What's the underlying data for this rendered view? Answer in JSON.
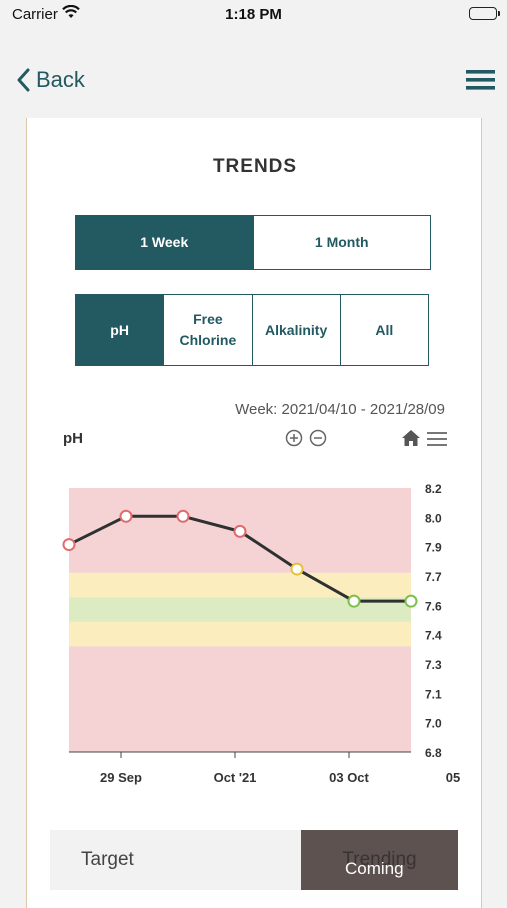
{
  "status_bar": {
    "carrier": "Carrier",
    "time": "1:18 PM"
  },
  "nav": {
    "back_label": "Back"
  },
  "page": {
    "title": "TRENDS"
  },
  "range_tabs": [
    {
      "label": "1 Week",
      "active": true
    },
    {
      "label": "1 Month",
      "active": false
    }
  ],
  "param_tabs": [
    {
      "label": "pH",
      "active": true
    },
    {
      "label": "Free Chlorine",
      "active": false
    },
    {
      "label": "Alkalinity",
      "active": false
    },
    {
      "label": "All",
      "active": false
    }
  ],
  "chart_header": {
    "week_range": "Week: 2021/04/10 - 2021/28/09",
    "title": "pH"
  },
  "chart_data": {
    "type": "line",
    "title": "pH",
    "y_ticks": [
      "8.2",
      "8.0",
      "7.9",
      "7.7",
      "7.6",
      "7.4",
      "7.3",
      "7.1",
      "7.0",
      "6.8"
    ],
    "x_ticks": [
      "29 Sep",
      "Oct '21",
      "03 Oct",
      "05"
    ],
    "points": [
      {
        "y": 7.9,
        "status": "red"
      },
      {
        "y": 8.05,
        "status": "red"
      },
      {
        "y": 8.05,
        "status": "red"
      },
      {
        "y": 7.97,
        "status": "red"
      },
      {
        "y": 7.77,
        "status": "yellow"
      },
      {
        "y": 7.6,
        "status": "green"
      },
      {
        "y": 7.6,
        "status": "green"
      }
    ],
    "bands": [
      {
        "from": 7.75,
        "to": 8.2,
        "color": "#f5d2d4"
      },
      {
        "from": 7.62,
        "to": 7.75,
        "color": "#fbedbe"
      },
      {
        "from": 7.49,
        "to": 7.62,
        "color": "#dcebc2"
      },
      {
        "from": 7.36,
        "to": 7.49,
        "color": "#fbedbe"
      },
      {
        "from": 6.8,
        "to": 7.36,
        "color": "#f5d2d4"
      }
    ],
    "status_colors": {
      "red": "#e06a6e",
      "yellow": "#e3c23a",
      "green": "#7cc04a"
    },
    "line_color": "#2f3130"
  },
  "bottom_tabs": {
    "target": "Target",
    "trending": "Trending",
    "coming": "Coming"
  },
  "colors": {
    "accent": "#235961"
  }
}
